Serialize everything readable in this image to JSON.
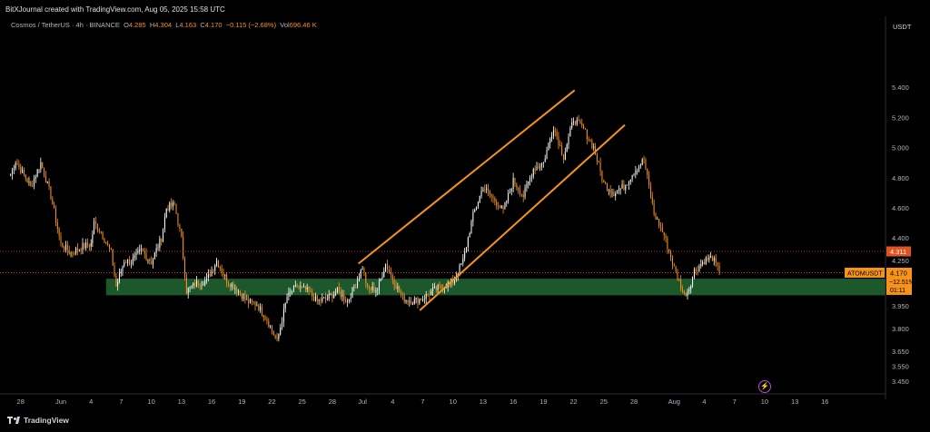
{
  "header": {
    "attribution": "BitXJournal created with TradingView.com, Aug 05, 2025 15:58 UTC",
    "symbol": "Cosmos / TetherUS · 4h · BINANCE",
    "open_label": "O",
    "open": "4.285",
    "high_label": "H",
    "high": "4.304",
    "low_label": "L",
    "low": "4.163",
    "close_label": "C",
    "close": "4.170",
    "change": "−0.115 (−2.68%)",
    "vol_label": "Vol",
    "vol": "696.46 K"
  },
  "axis_unit": "USDT",
  "branding": {
    "name": "TradingView"
  },
  "colors": {
    "background": "#000000",
    "up": "#ffffff",
    "down": "#f7931a",
    "channel": "#f7931a",
    "support_zone": "#1f5c2e",
    "price_tag": "#f7931a",
    "level_tag": "#e0531f"
  },
  "icons": {
    "logo": "tradingview-logo-icon",
    "flash": "lightning-icon"
  },
  "chart_data": {
    "type": "candlestick",
    "symbol": "ATOMUSDT",
    "timeframe": "4h",
    "y_ticks": [
      5.4,
      5.2,
      5.0,
      4.8,
      4.6,
      4.4,
      4.25,
      3.95,
      3.8,
      3.65,
      3.55,
      3.45
    ],
    "y_tick_labels": [
      "5.400",
      "5.200",
      "5.000",
      "4.800",
      "4.600",
      "4.400",
      "4.250",
      "3.950",
      "3.800",
      "3.650",
      "3.550",
      "3.450"
    ],
    "x_tick_labels": [
      "28",
      "Jun",
      "4",
      "7",
      "10",
      "13",
      "16",
      "19",
      "22",
      "25",
      "28",
      "Jul",
      "4",
      "7",
      "10",
      "13",
      "16",
      "19",
      "22",
      "25",
      "28",
      "Aug",
      "4",
      "7",
      "10",
      "13",
      "16"
    ],
    "x_tick_days": [
      -4,
      0,
      3,
      6,
      9,
      12,
      15,
      18,
      21,
      24,
      27,
      30,
      33,
      36,
      39,
      42,
      45,
      48,
      51,
      54,
      57,
      61,
      64,
      67,
      70,
      73,
      76
    ],
    "ylim": [
      3.39,
      5.75
    ],
    "current_price": {
      "label": "ATOMUSDT",
      "value": "4.170",
      "change_pct": "−12.51%",
      "countdown": "01:11",
      "value_num": 4.17
    },
    "level_line": {
      "value": "4.311",
      "value_num": 4.311
    },
    "support_zone": {
      "from": 4.02,
      "to": 4.13,
      "start_day": 4.5
    },
    "channel": {
      "upper": {
        "start": {
          "day": 29.6,
          "price": 4.23
        },
        "end": {
          "day": 51.1,
          "price": 5.38
        }
      },
      "lower": {
        "start": {
          "day": 35.7,
          "price": 3.92
        },
        "end": {
          "day": 56.1,
          "price": 5.15
        }
      }
    },
    "anchors": [
      [
        -5,
        4.82
      ],
      [
        -4.5,
        4.91
      ],
      [
        -3,
        4.74
      ],
      [
        -2,
        4.9
      ],
      [
        -1,
        4.68
      ],
      [
        0,
        4.36
      ],
      [
        1,
        4.3
      ],
      [
        2,
        4.34
      ],
      [
        3,
        4.36
      ],
      [
        3.3,
        4.5
      ],
      [
        4,
        4.44
      ],
      [
        5,
        4.3
      ],
      [
        5.5,
        4.08
      ],
      [
        6.3,
        4.25
      ],
      [
        7,
        4.24
      ],
      [
        8,
        4.32
      ],
      [
        9,
        4.24
      ],
      [
        10,
        4.4
      ],
      [
        10.5,
        4.6
      ],
      [
        11.3,
        4.62
      ],
      [
        12,
        4.39
      ],
      [
        12.5,
        4.05
      ],
      [
        13.5,
        4.1
      ],
      [
        14.5,
        4.12
      ],
      [
        15.5,
        4.25
      ],
      [
        16.5,
        4.12
      ],
      [
        17.5,
        4.06
      ],
      [
        18.5,
        3.98
      ],
      [
        19.5,
        3.96
      ],
      [
        20.5,
        3.86
      ],
      [
        21.5,
        3.71
      ],
      [
        22,
        3.86
      ],
      [
        22.5,
        4.01
      ],
      [
        23.5,
        4.08
      ],
      [
        24.5,
        4.05
      ],
      [
        25.5,
        3.98
      ],
      [
        26.5,
        4.0
      ],
      [
        27.5,
        4.05
      ],
      [
        28.5,
        3.98
      ],
      [
        29.5,
        4.12
      ],
      [
        30,
        4.21
      ],
      [
        30.5,
        4.06
      ],
      [
        31.5,
        4.06
      ],
      [
        32.3,
        4.23
      ],
      [
        33,
        4.13
      ],
      [
        34,
        4.0
      ],
      [
        35,
        3.98
      ],
      [
        36,
        4.0
      ],
      [
        37,
        4.05
      ],
      [
        38,
        4.08
      ],
      [
        39,
        4.11
      ],
      [
        40,
        4.25
      ],
      [
        41,
        4.55
      ],
      [
        42,
        4.74
      ],
      [
        43,
        4.66
      ],
      [
        44,
        4.58
      ],
      [
        45,
        4.78
      ],
      [
        46,
        4.68
      ],
      [
        47,
        4.86
      ],
      [
        48,
        4.9
      ],
      [
        49,
        5.14
      ],
      [
        50,
        4.94
      ],
      [
        51,
        5.19
      ],
      [
        52,
        5.12
      ],
      [
        53,
        5.0
      ],
      [
        54,
        4.76
      ],
      [
        55,
        4.7
      ],
      [
        56,
        4.74
      ],
      [
        57,
        4.84
      ],
      [
        58,
        4.92
      ],
      [
        59,
        4.56
      ],
      [
        60,
        4.42
      ],
      [
        61,
        4.2
      ],
      [
        62,
        4.02
      ],
      [
        62.5,
        4.07
      ],
      [
        63,
        4.18
      ],
      [
        64,
        4.25
      ],
      [
        64.8,
        4.27
      ],
      [
        65.5,
        4.17
      ]
    ]
  }
}
